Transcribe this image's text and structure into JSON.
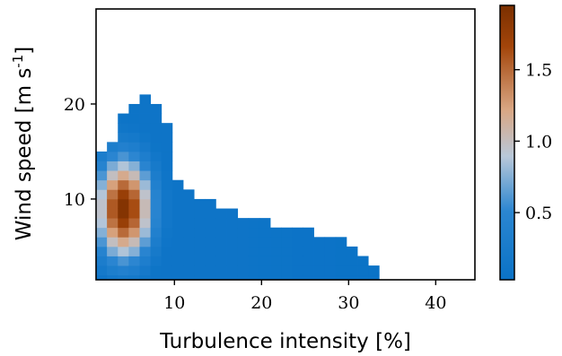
{
  "chart_data": {
    "type": "heatmap",
    "title": "",
    "xlabel": "Turbulence intensity [%]",
    "ylabel": "Wind speed [m s-1]",
    "ylabel_parts": {
      "main": "Wind speed [m s",
      "sup": "-1",
      "close": "]"
    },
    "xlim": [
      1,
      44.5
    ],
    "ylim": [
      1.5,
      30
    ],
    "xticks": [
      10,
      20,
      30,
      40
    ],
    "xtick_labels": [
      "10",
      "20",
      "30",
      "40"
    ],
    "yticks": [
      10,
      20
    ],
    "ytick_labels": [
      "10",
      "20"
    ],
    "colorbar": {
      "range": [
        0.03,
        1.95
      ],
      "ticks": [
        0.5,
        1.0,
        1.5
      ],
      "tick_labels": [
        "0.5",
        "1.0",
        "1.5"
      ],
      "colormap_stops": [
        "#0a72c6",
        "#2b86d1",
        "#b9c8d9",
        "#d9a683",
        "#a3450a",
        "#7a2f00"
      ]
    },
    "grid": false,
    "bins": {
      "ti_bin_width": 1.25,
      "ws_bin_width": 1.0,
      "peak_ti": 4.2,
      "peak_ws": 9,
      "peak_density": 1.9,
      "columns": [
        {
          "x0": 1.0,
          "ws_max": 15
        },
        {
          "x0": 2.25,
          "ws_max": 16
        },
        {
          "x0": 3.5,
          "ws_max": 19
        },
        {
          "x0": 4.75,
          "ws_max": 20
        },
        {
          "x0": 6.0,
          "ws_max": 21
        },
        {
          "x0": 7.25,
          "ws_max": 20
        },
        {
          "x0": 8.5,
          "ws_max": 18
        },
        {
          "x0": 9.75,
          "ws_max": 12
        },
        {
          "x0": 11.0,
          "ws_max": 11
        },
        {
          "x0": 12.25,
          "ws_max": 10
        },
        {
          "x0": 13.5,
          "ws_max": 10
        },
        {
          "x0": 14.75,
          "ws_max": 9
        },
        {
          "x0": 16.0,
          "ws_max": 9
        },
        {
          "x0": 17.25,
          "ws_max": 8
        },
        {
          "x0": 18.5,
          "ws_max": 8
        },
        {
          "x0": 19.75,
          "ws_max": 8
        },
        {
          "x0": 21.0,
          "ws_max": 7
        },
        {
          "x0": 22.25,
          "ws_max": 7
        },
        {
          "x0": 23.5,
          "ws_max": 7
        },
        {
          "x0": 24.75,
          "ws_max": 7
        },
        {
          "x0": 26.0,
          "ws_max": 6
        },
        {
          "x0": 27.25,
          "ws_max": 6
        },
        {
          "x0": 28.5,
          "ws_max": 6
        },
        {
          "x0": 29.75,
          "ws_max": 5
        },
        {
          "x0": 31.0,
          "ws_max": 4
        },
        {
          "x0": 32.25,
          "ws_max": 3
        }
      ]
    }
  }
}
